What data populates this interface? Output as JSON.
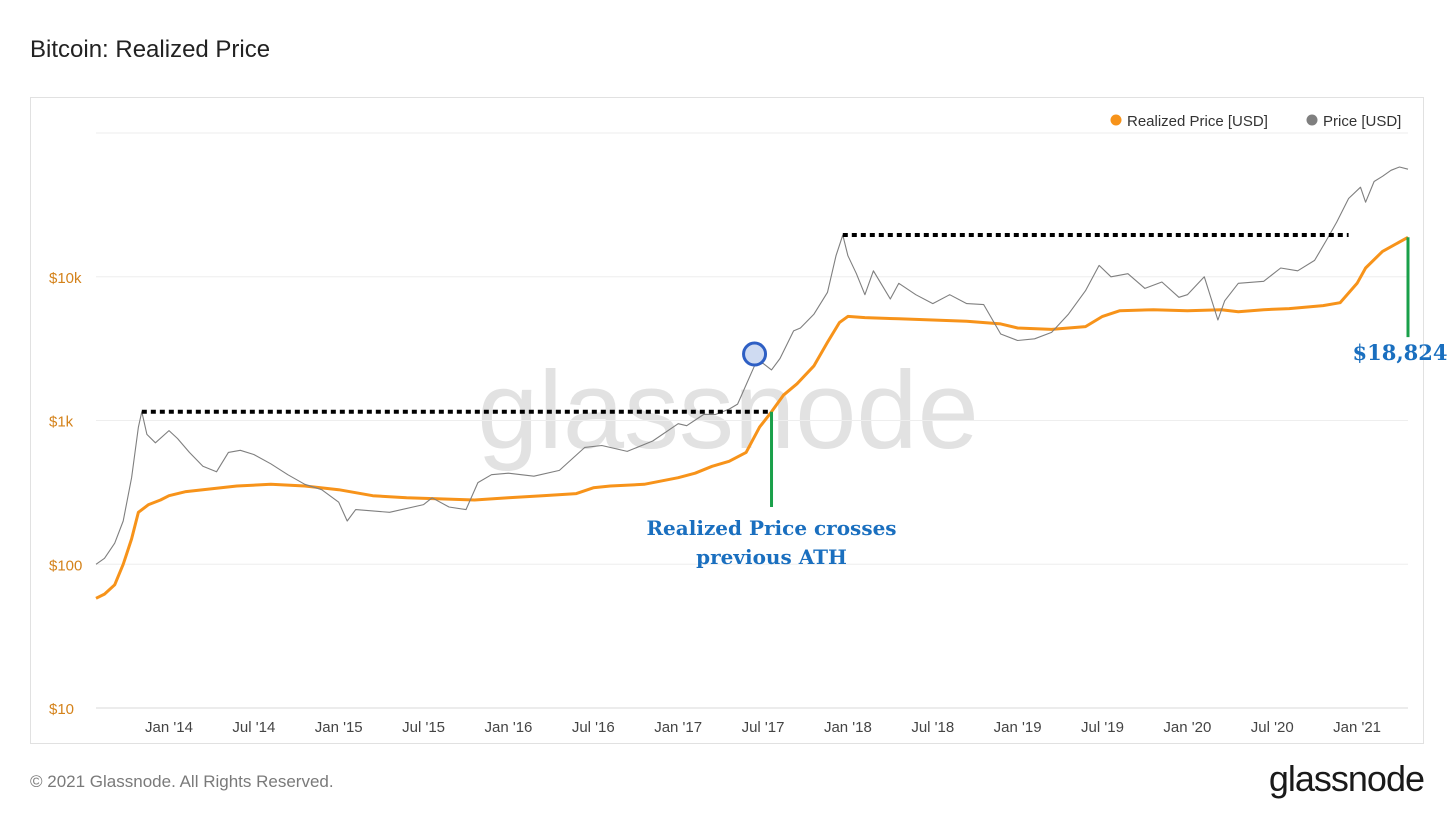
{
  "header": {
    "title": "Bitcoin: Realized Price"
  },
  "footer": {
    "copyright": "© 2021 Glassnode. All Rights Reserved.",
    "brand": "glassnode"
  },
  "watermark": "glassnode",
  "colors": {
    "realized": "#f7931a",
    "price": "#7f7f7f",
    "ytick": "#d4821a",
    "annotation": "#1a6fbf",
    "marker_line": "#1aa04a"
  },
  "chart_data": {
    "type": "line",
    "y_scale": "log",
    "ylim": [
      10,
      100000
    ],
    "y_ticks": [
      {
        "value": 10,
        "label": "$10"
      },
      {
        "value": 100,
        "label": "$100"
      },
      {
        "value": 1000,
        "label": "$1k"
      },
      {
        "value": 10000,
        "label": "$10k"
      }
    ],
    "x_ticks": [
      "Jan '14",
      "Jul '14",
      "Jan '15",
      "Jul '15",
      "Jan '16",
      "Jul '16",
      "Jan '17",
      "Jul '17",
      "Jan '18",
      "Jul '18",
      "Jan '19",
      "Jul '19",
      "Jan '20",
      "Jul '20",
      "Jan '21"
    ],
    "x_range": [
      2013.57,
      2021.3
    ],
    "legend": {
      "placement": "top-right",
      "items": [
        "Realized Price [USD]",
        "Price [USD]"
      ]
    },
    "series": [
      {
        "name": "Realized Price [USD]",
        "color": "#f7931a",
        "points": [
          [
            2013.57,
            58
          ],
          [
            2013.62,
            62
          ],
          [
            2013.68,
            72
          ],
          [
            2013.73,
            100
          ],
          [
            2013.78,
            150
          ],
          [
            2013.82,
            230
          ],
          [
            2013.88,
            260
          ],
          [
            2013.95,
            280
          ],
          [
            2014.0,
            300
          ],
          [
            2014.1,
            320
          ],
          [
            2014.2,
            330
          ],
          [
            2014.4,
            350
          ],
          [
            2014.6,
            360
          ],
          [
            2014.8,
            350
          ],
          [
            2015.0,
            330
          ],
          [
            2015.2,
            300
          ],
          [
            2015.4,
            290
          ],
          [
            2015.6,
            285
          ],
          [
            2015.8,
            280
          ],
          [
            2016.0,
            290
          ],
          [
            2016.2,
            300
          ],
          [
            2016.4,
            310
          ],
          [
            2016.5,
            340
          ],
          [
            2016.6,
            350
          ],
          [
            2016.8,
            360
          ],
          [
            2017.0,
            400
          ],
          [
            2017.1,
            430
          ],
          [
            2017.2,
            480
          ],
          [
            2017.3,
            520
          ],
          [
            2017.4,
            600
          ],
          [
            2017.48,
            900
          ],
          [
            2017.55,
            1150
          ],
          [
            2017.62,
            1500
          ],
          [
            2017.7,
            1800
          ],
          [
            2017.8,
            2400
          ],
          [
            2017.88,
            3500
          ],
          [
            2017.95,
            4800
          ],
          [
            2018.0,
            5300
          ],
          [
            2018.1,
            5200
          ],
          [
            2018.3,
            5100
          ],
          [
            2018.5,
            5000
          ],
          [
            2018.7,
            4900
          ],
          [
            2018.9,
            4700
          ],
          [
            2019.0,
            4400
          ],
          [
            2019.2,
            4300
          ],
          [
            2019.4,
            4500
          ],
          [
            2019.5,
            5300
          ],
          [
            2019.6,
            5800
          ],
          [
            2019.8,
            5900
          ],
          [
            2020.0,
            5800
          ],
          [
            2020.2,
            5900
          ],
          [
            2020.3,
            5700
          ],
          [
            2020.45,
            5900
          ],
          [
            2020.6,
            6000
          ],
          [
            2020.8,
            6300
          ],
          [
            2020.9,
            6600
          ],
          [
            2021.0,
            9000
          ],
          [
            2021.05,
            11500
          ],
          [
            2021.15,
            15000
          ],
          [
            2021.3,
            18824
          ]
        ]
      },
      {
        "name": "Price [USD]",
        "color": "#7f7f7f",
        "points": [
          [
            2013.57,
            100
          ],
          [
            2013.62,
            110
          ],
          [
            2013.68,
            140
          ],
          [
            2013.73,
            200
          ],
          [
            2013.78,
            400
          ],
          [
            2013.82,
            900
          ],
          [
            2013.84,
            1150
          ],
          [
            2013.87,
            800
          ],
          [
            2013.92,
            700
          ],
          [
            2014.0,
            850
          ],
          [
            2014.05,
            750
          ],
          [
            2014.12,
            600
          ],
          [
            2014.2,
            480
          ],
          [
            2014.28,
            440
          ],
          [
            2014.35,
            600
          ],
          [
            2014.42,
            620
          ],
          [
            2014.5,
            580
          ],
          [
            2014.6,
            500
          ],
          [
            2014.7,
            420
          ],
          [
            2014.8,
            360
          ],
          [
            2014.9,
            330
          ],
          [
            2015.0,
            270
          ],
          [
            2015.05,
            200
          ],
          [
            2015.1,
            240
          ],
          [
            2015.3,
            230
          ],
          [
            2015.5,
            260
          ],
          [
            2015.55,
            290
          ],
          [
            2015.65,
            250
          ],
          [
            2015.75,
            240
          ],
          [
            2015.82,
            370
          ],
          [
            2015.9,
            420
          ],
          [
            2016.0,
            430
          ],
          [
            2016.15,
            410
          ],
          [
            2016.3,
            450
          ],
          [
            2016.45,
            650
          ],
          [
            2016.55,
            670
          ],
          [
            2016.7,
            610
          ],
          [
            2016.85,
            720
          ],
          [
            2017.0,
            950
          ],
          [
            2017.05,
            920
          ],
          [
            2017.15,
            1100
          ],
          [
            2017.22,
            1100
          ],
          [
            2017.3,
            1200
          ],
          [
            2017.35,
            1300
          ],
          [
            2017.45,
            2400
          ],
          [
            2017.5,
            2500
          ],
          [
            2017.55,
            2250
          ],
          [
            2017.6,
            2700
          ],
          [
            2017.68,
            4200
          ],
          [
            2017.72,
            4400
          ],
          [
            2017.8,
            5500
          ],
          [
            2017.88,
            7800
          ],
          [
            2017.93,
            14000
          ],
          [
            2017.97,
            19500
          ],
          [
            2018.0,
            14000
          ],
          [
            2018.05,
            10500
          ],
          [
            2018.1,
            7500
          ],
          [
            2018.15,
            11000
          ],
          [
            2018.25,
            7000
          ],
          [
            2018.3,
            9000
          ],
          [
            2018.4,
            7500
          ],
          [
            2018.5,
            6500
          ],
          [
            2018.6,
            7500
          ],
          [
            2018.7,
            6500
          ],
          [
            2018.8,
            6400
          ],
          [
            2018.9,
            4000
          ],
          [
            2019.0,
            3600
          ],
          [
            2019.1,
            3700
          ],
          [
            2019.2,
            4100
          ],
          [
            2019.3,
            5500
          ],
          [
            2019.4,
            8000
          ],
          [
            2019.48,
            12000
          ],
          [
            2019.55,
            10000
          ],
          [
            2019.65,
            10500
          ],
          [
            2019.75,
            8300
          ],
          [
            2019.85,
            9200
          ],
          [
            2019.95,
            7200
          ],
          [
            2020.0,
            7500
          ],
          [
            2020.1,
            10000
          ],
          [
            2020.18,
            5000
          ],
          [
            2020.22,
            6800
          ],
          [
            2020.3,
            9000
          ],
          [
            2020.45,
            9300
          ],
          [
            2020.55,
            11500
          ],
          [
            2020.65,
            11000
          ],
          [
            2020.75,
            13000
          ],
          [
            2020.82,
            18000
          ],
          [
            2020.88,
            24000
          ],
          [
            2020.95,
            35000
          ],
          [
            2021.02,
            42000
          ],
          [
            2021.05,
            33000
          ],
          [
            2021.1,
            46000
          ],
          [
            2021.15,
            50000
          ],
          [
            2021.2,
            55000
          ],
          [
            2021.25,
            58000
          ],
          [
            2021.3,
            56000
          ]
        ]
      }
    ],
    "annotations": [
      {
        "type": "previous_ath_line",
        "x_start": 2013.84,
        "x_end": 2017.55,
        "y": 1150
      },
      {
        "type": "previous_ath_line",
        "x_start": 2017.97,
        "x_end": 2020.95,
        "y": 19500
      },
      {
        "type": "crossing_line",
        "x": 2017.55,
        "y_from": 1150,
        "y_to": 250,
        "text_lines": [
          "Realized Price crosses",
          "previous ATH"
        ]
      },
      {
        "type": "value_line",
        "x": 2021.3,
        "y_from": 18824,
        "y_to": 3800,
        "text": "$18,824"
      },
      {
        "type": "circle_marker",
        "x": 2017.45,
        "y": 2900
      }
    ]
  }
}
